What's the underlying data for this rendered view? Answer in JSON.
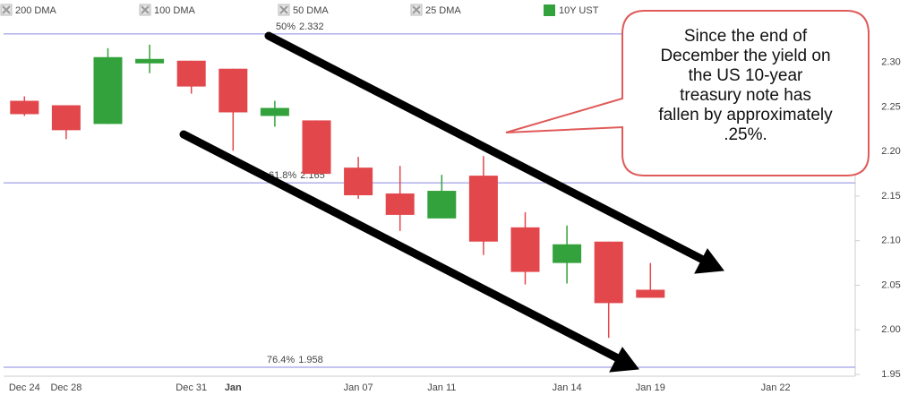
{
  "chart_data": {
    "type": "candlestick",
    "categories": [
      "Dec 24",
      "Dec 28",
      null,
      null,
      "Dec 31",
      "Jan",
      null,
      null,
      "Jan 07",
      null,
      "Jan 11",
      null,
      null,
      "Jan 14",
      null,
      "Jan 19",
      null,
      null,
      "Jan 22",
      null
    ],
    "series": [
      {
        "name": "10Y UST",
        "color": "#34a23c",
        "down_color": "#e2474b",
        "open": [
          2.257,
          2.252,
          2.231,
          2.299,
          2.302,
          2.293,
          2.24,
          2.235,
          2.182,
          2.153,
          2.125,
          2.173,
          2.115,
          2.075,
          2.099,
          2.045,
          null,
          null,
          null,
          null
        ],
        "high": [
          2.262,
          2.252,
          2.316,
          2.32,
          2.302,
          2.293,
          2.257,
          2.235,
          2.194,
          2.184,
          2.174,
          2.195,
          2.132,
          2.117,
          2.099,
          2.075,
          null,
          null,
          null,
          null
        ],
        "low": [
          2.24,
          2.214,
          2.231,
          2.288,
          2.265,
          2.201,
          2.228,
          2.175,
          2.147,
          2.111,
          2.125,
          2.084,
          2.051,
          2.052,
          1.991,
          2.036,
          null,
          null,
          null,
          null
        ],
        "close": [
          2.242,
          2.224,
          2.306,
          2.304,
          2.273,
          2.244,
          2.249,
          2.175,
          2.151,
          2.129,
          2.156,
          2.099,
          2.065,
          2.096,
          2.03,
          2.036,
          null,
          null,
          null,
          null
        ]
      }
    ],
    "indicators": [
      "200 DMA",
      "100 DMA",
      "50 DMA",
      "25 DMA"
    ],
    "ylim": [
      1.95,
      2.35
    ],
    "yticks": [
      {
        "value": 1.95,
        "label": "1.95"
      },
      {
        "value": 2.0,
        "label": "2.00"
      },
      {
        "value": 2.05,
        "label": "2.05"
      },
      {
        "value": 2.1,
        "label": "2.10"
      },
      {
        "value": 2.15,
        "label": "2.15"
      },
      {
        "value": 2.2,
        "label": "2.20"
      },
      {
        "value": 2.25,
        "label": "2.25"
      },
      {
        "value": 2.3,
        "label": "2.30"
      }
    ],
    "levels": [
      {
        "name": "50%",
        "value": 2.332
      },
      {
        "name": "61.8%",
        "value": 2.165
      },
      {
        "name": "76.4%",
        "value": 1.958
      }
    ],
    "level_color": "#8a8ae0",
    "annotation": [
      "Since the end of",
      "December the yield on",
      "the US 10-year",
      "treasury note has",
      "fallen by approximately",
      ".25%."
    ]
  }
}
